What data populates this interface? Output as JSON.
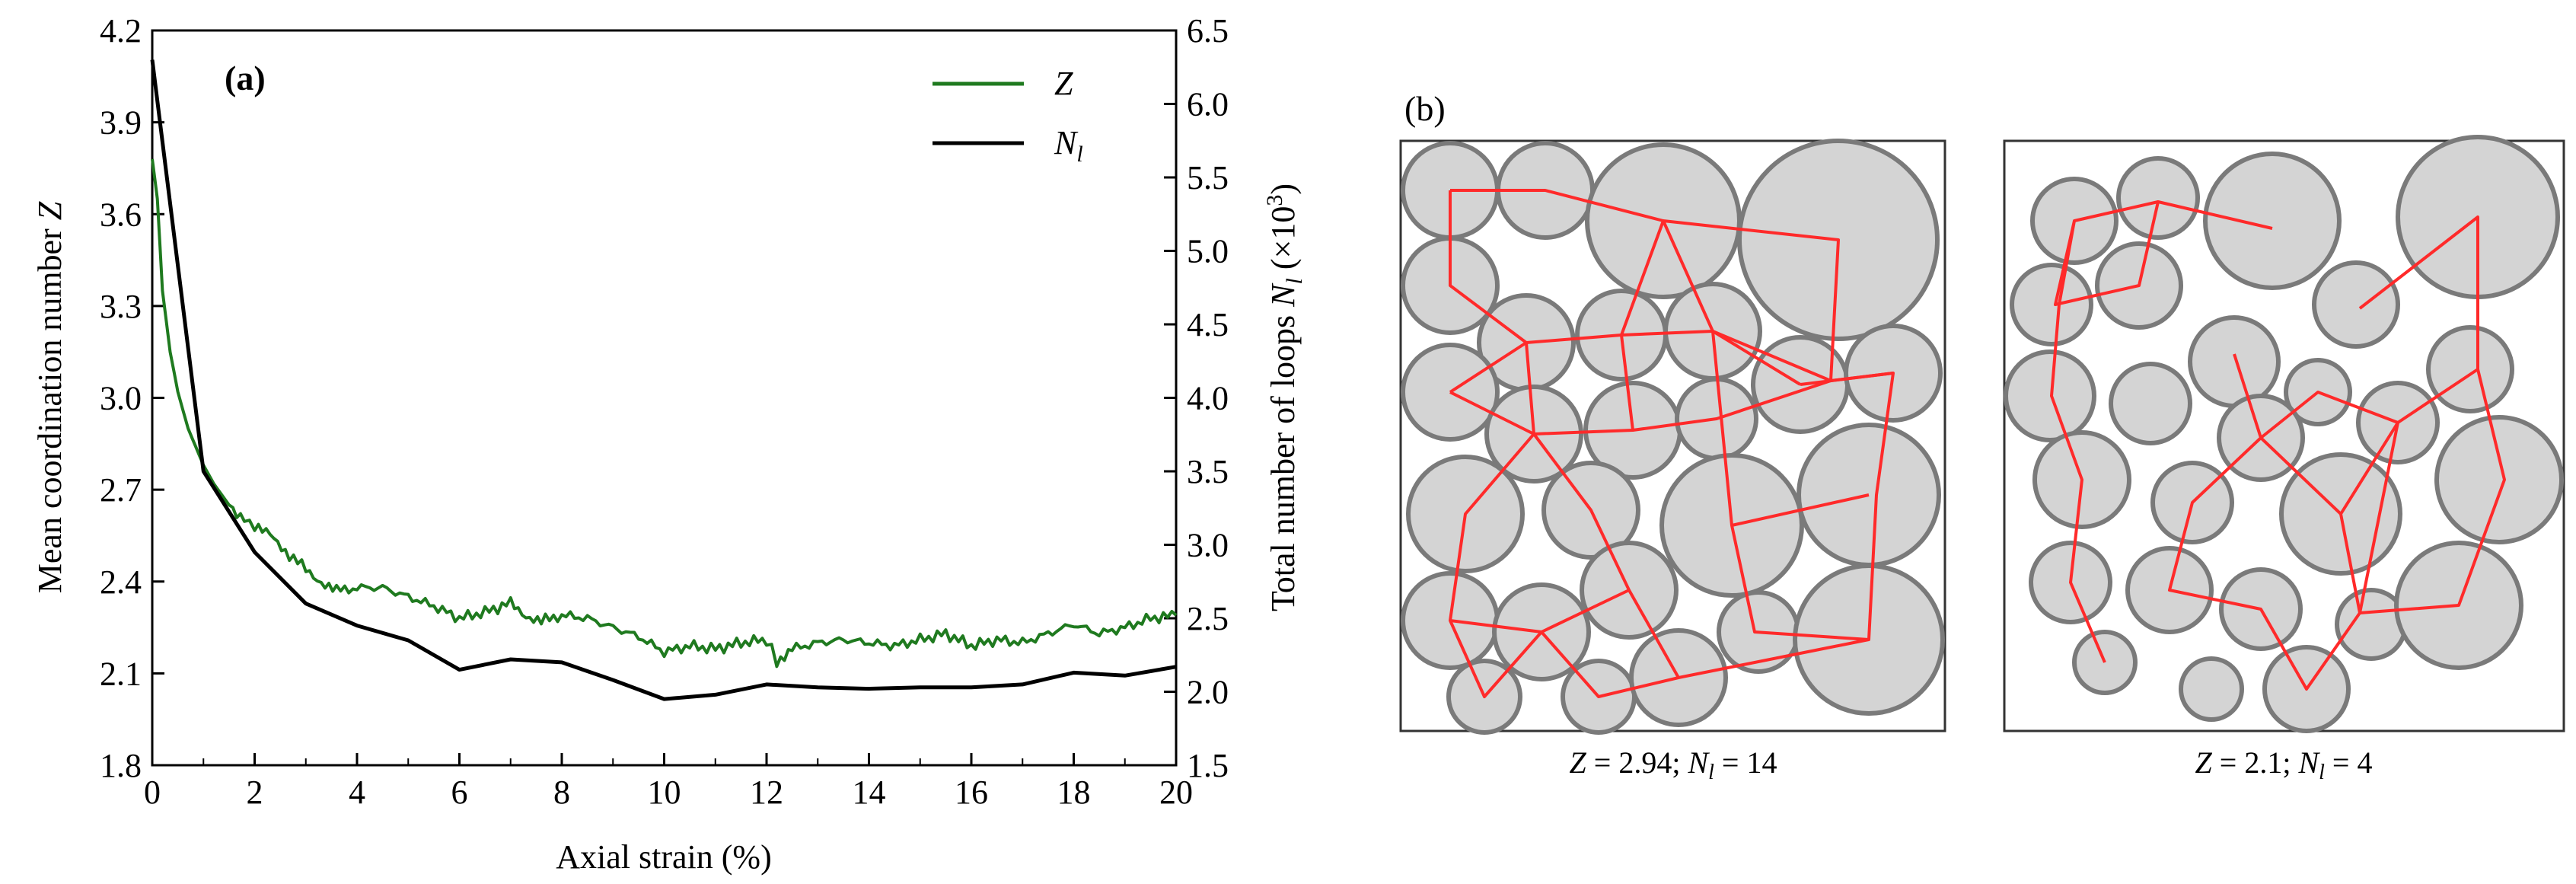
{
  "panel_a": {
    "label": "(a)",
    "x_axis": {
      "title": "Axial strain (%)"
    },
    "y_left_axis": {
      "title": "Mean coordination number",
      "symbol": "Z"
    },
    "y_right_axis": {
      "title": "Total number of loops",
      "symbol": "N",
      "subscript": "l",
      "unit_prefix": "(×10",
      "unit_exp": "3",
      "unit_suffix": ")"
    },
    "legend": [
      {
        "key": "Z",
        "symbol": "Z",
        "subscript": "",
        "color": "#1f7a1f"
      },
      {
        "key": "Nl",
        "symbol": "N",
        "subscript": "l",
        "color": "#000000"
      }
    ]
  },
  "chart_data": {
    "type": "line",
    "title": "",
    "xlabel": "Axial strain (%)",
    "ylabel": "Mean coordination number Z",
    "y2label": "Total number of loops Nl (×10^3)",
    "xlim": [
      0,
      20
    ],
    "ylim": [
      1.8,
      4.2
    ],
    "y2lim": [
      1.5,
      6.5
    ],
    "xticks": [
      "0",
      "2",
      "4",
      "6",
      "8",
      "10",
      "12",
      "14",
      "16",
      "18",
      "20"
    ],
    "yticks": [
      "1.8",
      "2.1",
      "2.4",
      "2.7",
      "3.0",
      "3.3",
      "3.6",
      "3.9",
      "4.2"
    ],
    "y2ticks": [
      "1.5",
      "2.0",
      "2.5",
      "3.0",
      "3.5",
      "4.0",
      "4.5",
      "5.0",
      "5.5",
      "6.0",
      "6.5"
    ],
    "series": [
      {
        "name": "Z",
        "axis": "left",
        "color": "#1f7a1f",
        "x": [
          0,
          0.1,
          0.2,
          0.35,
          0.5,
          0.7,
          1.0,
          1.2,
          1.5,
          1.8,
          2.0,
          2.3,
          2.6,
          3.0,
          3.3,
          3.6,
          4.0,
          4.5,
          5.0,
          5.5,
          6.0,
          6.5,
          7.0,
          7.3,
          7.6,
          8.0,
          8.5,
          9.0,
          9.5,
          10.0,
          10.5,
          11.0,
          11.5,
          12.0,
          12.2,
          12.5,
          13.0,
          13.5,
          14.0,
          14.5,
          15.0,
          15.5,
          16.0,
          16.5,
          17.0,
          17.5,
          18.0,
          18.5,
          19.0,
          19.5,
          20.0
        ],
        "values": [
          3.78,
          3.65,
          3.35,
          3.15,
          3.02,
          2.9,
          2.78,
          2.72,
          2.65,
          2.6,
          2.58,
          2.55,
          2.5,
          2.44,
          2.4,
          2.37,
          2.38,
          2.38,
          2.35,
          2.32,
          2.28,
          2.3,
          2.33,
          2.29,
          2.27,
          2.29,
          2.28,
          2.25,
          2.22,
          2.17,
          2.19,
          2.18,
          2.2,
          2.21,
          2.14,
          2.18,
          2.2,
          2.21,
          2.2,
          2.19,
          2.21,
          2.23,
          2.19,
          2.21,
          2.2,
          2.23,
          2.26,
          2.23,
          2.25,
          2.28,
          2.29
        ]
      },
      {
        "name": "Nl",
        "axis": "right",
        "color": "#000000",
        "x": [
          0,
          1,
          2,
          3,
          4,
          5,
          6,
          7,
          8,
          9,
          10,
          11,
          12,
          13,
          14,
          15,
          16,
          17,
          18,
          19,
          20
        ],
        "values": [
          6.3,
          3.5,
          2.95,
          2.6,
          2.45,
          2.35,
          2.15,
          2.22,
          2.2,
          2.08,
          1.95,
          1.98,
          2.05,
          2.03,
          2.02,
          2.03,
          2.03,
          2.05,
          2.13,
          2.11,
          2.17
        ]
      }
    ]
  },
  "panel_b": {
    "label": "(b)",
    "left_network": {
      "caption": {
        "z_sym": "Z",
        "z_val": " = 2.94;",
        "n_sym": "N",
        "n_sub": "l",
        "n_val": " = 14"
      }
    },
    "right_network": {
      "caption": {
        "z_sym": "Z",
        "z_val": " = 2.1;",
        "n_sym": "N",
        "n_sub": "l",
        "n_val": " = 4"
      }
    },
    "colors": {
      "particle_fill": "#d4d4d4",
      "particle_stroke": "#7a7a7a",
      "contact_line": "#ff2a2a",
      "box_stroke": "#333333"
    }
  }
}
